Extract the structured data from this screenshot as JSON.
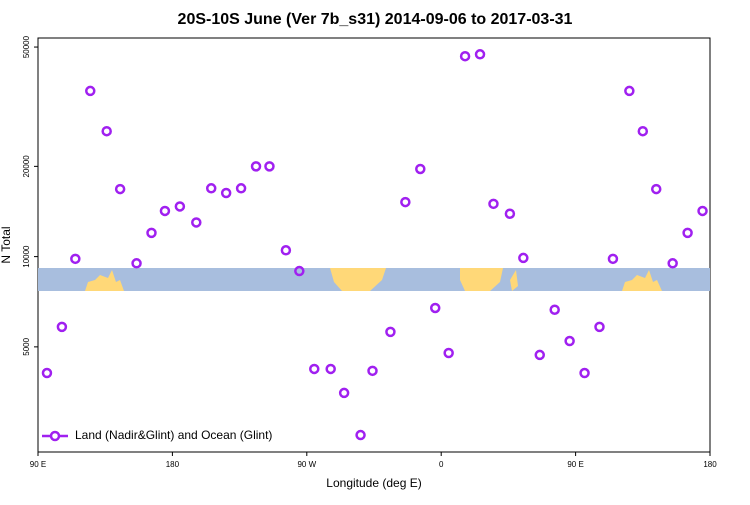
{
  "chart_data": {
    "type": "scatter",
    "title": "20S-10S June (Ver 7b_s31)   2014-09-06 to 2017-03-31",
    "x_label": "Longitude (deg E)",
    "y_label": "N Total",
    "xlim": [
      90,
      540
    ],
    "xticks": [
      {
        "value": 90,
        "label": "90 E"
      },
      180,
      {
        "value": 270,
        "label": "90 W"
      },
      {
        "value": 360,
        "label": "0"
      },
      {
        "value": 450,
        "label": "90 E"
      },
      {
        "value": 540,
        "label": "180"
      }
    ],
    "ylim": [
      2230,
      53600
    ],
    "yticks": [
      5000,
      10000,
      20000,
      50000
    ],
    "log_y": true,
    "legend": "bottom-left",
    "series": [
      {
        "name": "Land (Nadir&Glint) and Ocean (Glint)",
        "color": "#a020f0",
        "x": [
          96,
          106,
          115,
          125,
          136,
          145,
          156,
          166,
          175,
          185,
          196,
          206,
          216,
          226,
          236,
          245,
          256,
          265,
          275,
          286,
          295,
          306,
          314,
          326,
          336,
          346,
          356,
          365,
          376,
          386,
          395,
          406,
          415,
          426,
          436,
          446,
          456,
          466,
          475,
          486,
          495,
          504,
          515,
          525,
          535
        ],
        "values": [
          4090,
          5830,
          9830,
          35700,
          26200,
          16800,
          9500,
          12000,
          14200,
          14700,
          13000,
          16900,
          16300,
          16900,
          20000,
          20000,
          10500,
          8950,
          4220,
          4220,
          3510,
          2540,
          4160,
          5610,
          15200,
          19600,
          6740,
          4770,
          46600,
          47300,
          15000,
          13900,
          9900,
          4700,
          6650,
          5230,
          4090,
          5830,
          9830,
          35700,
          26200,
          16800,
          9500,
          12000,
          14200
        ]
      }
    ]
  }
}
